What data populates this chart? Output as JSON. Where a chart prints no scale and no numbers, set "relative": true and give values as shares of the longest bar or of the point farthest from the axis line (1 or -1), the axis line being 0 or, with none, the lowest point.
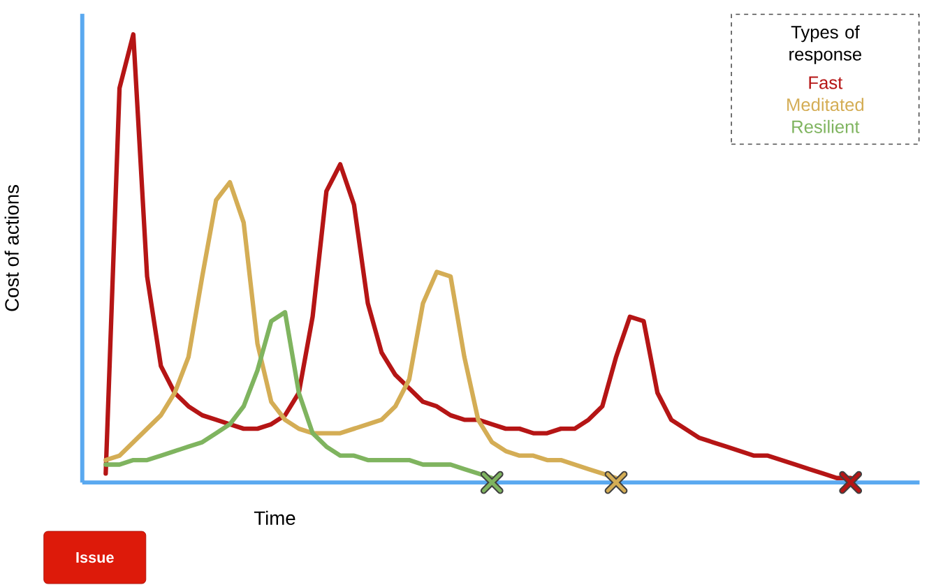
{
  "chart_data": {
    "type": "line",
    "relative": true,
    "xlabel": "Time",
    "ylabel": "Cost of actions",
    "legend_title": "Types of response",
    "line_style": "solid",
    "marker": "none",
    "categories": [
      null,
      null,
      null,
      null,
      null,
      null,
      null,
      null,
      null,
      null,
      null,
      null,
      null,
      null,
      null,
      null,
      null,
      null,
      null,
      null,
      null,
      null,
      null,
      null,
      null,
      null,
      null,
      null,
      null,
      null,
      null,
      null,
      null,
      null,
      null,
      null,
      null,
      null,
      null,
      null,
      null,
      null,
      null,
      null,
      null,
      null,
      null,
      null,
      null,
      null,
      null,
      null,
      null,
      null,
      null
    ],
    "series": [
      {
        "name": "Fast",
        "color": "#b51515",
        "values": [
          0.02,
          0.88,
          1,
          0.46,
          0.26,
          0.2,
          0.17,
          0.15,
          0.14,
          0.13,
          0.12,
          0.12,
          0.13,
          0.15,
          0.2,
          0.37,
          0.65,
          0.71,
          0.62,
          0.4,
          0.29,
          0.24,
          0.21,
          0.18,
          0.17,
          0.15,
          0.14,
          0.14,
          0.13,
          0.12,
          0.12,
          0.11,
          0.11,
          0.12,
          0.12,
          0.14,
          0.17,
          0.28,
          0.37,
          0.36,
          0.2,
          0.14,
          0.12,
          0.1,
          0.09,
          0.08,
          0.07,
          0.06,
          0.06,
          0.05,
          0.04,
          0.03,
          0.02,
          0.01,
          0.01
        ]
      },
      {
        "name": "Meditated",
        "color": "#d4ad55",
        "values": [
          0.05,
          0.06,
          0.09,
          0.12,
          0.15,
          0.2,
          0.28,
          0.46,
          0.63,
          0.67,
          0.58,
          0.31,
          0.18,
          0.14,
          0.12,
          0.11,
          0.11,
          0.11,
          0.12,
          0.13,
          0.14,
          0.17,
          0.23,
          0.4,
          0.47,
          0.46,
          0.28,
          0.14,
          0.09,
          0.07,
          0.06,
          0.06,
          0.05,
          0.05,
          0.04,
          0.03,
          0.02,
          0.01,
          null,
          null,
          null,
          null,
          null,
          null,
          null,
          null,
          null,
          null,
          null,
          null,
          null,
          null,
          null,
          null,
          null
        ]
      },
      {
        "name": "Resilient",
        "color": "#7fb45f",
        "values": [
          0.04,
          0.04,
          0.05,
          0.05,
          0.06,
          0.07,
          0.08,
          0.09,
          0.11,
          0.13,
          0.17,
          0.25,
          0.36,
          0.38,
          0.2,
          0.11,
          0.08,
          0.06,
          0.06,
          0.05,
          0.05,
          0.05,
          0.05,
          0.04,
          0.04,
          0.04,
          0.03,
          0.02,
          0.01,
          null,
          null,
          null,
          null,
          null,
          null,
          null,
          null,
          null,
          null,
          null,
          null,
          null,
          null,
          null,
          null,
          null,
          null,
          null,
          null,
          null,
          null,
          null,
          null,
          null,
          null
        ]
      }
    ],
    "annotations": [
      "Issue"
    ]
  }
}
